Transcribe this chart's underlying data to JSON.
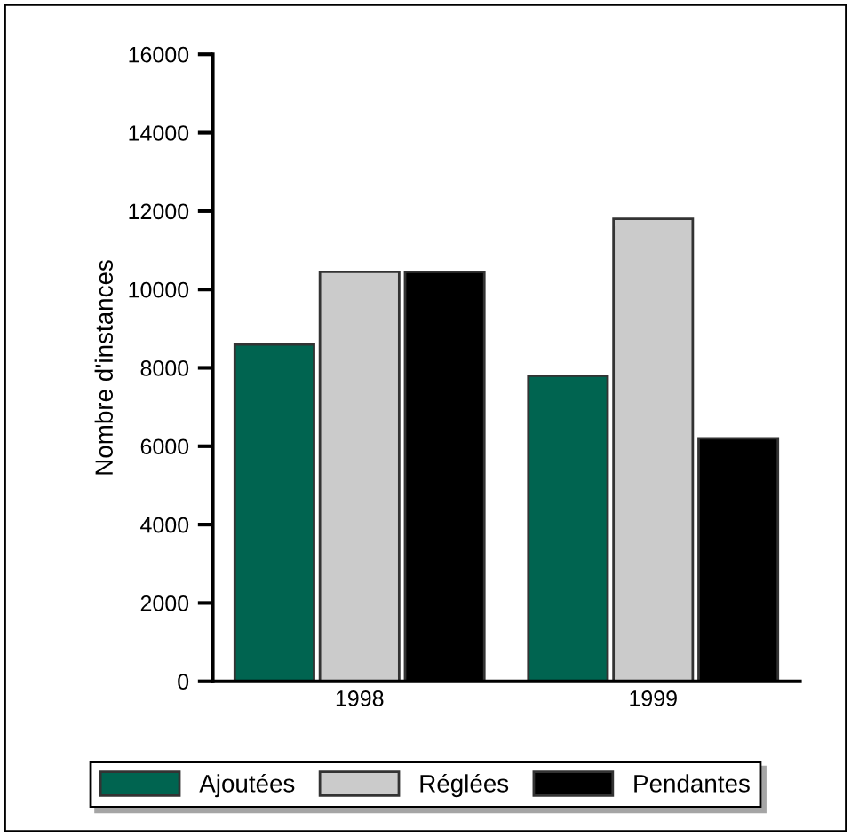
{
  "chart_data": {
    "type": "bar",
    "ylabel": "Nombre d'instances",
    "categories": [
      "1998",
      "1999"
    ],
    "series": [
      {
        "name": "Ajoutées",
        "color": "#006450",
        "values": [
          8600,
          7800
        ]
      },
      {
        "name": "Réglées",
        "color": "#cbcbcb",
        "values": [
          10450,
          11800
        ]
      },
      {
        "name": "Pendantes",
        "color": "#000000",
        "values": [
          10450,
          6200
        ]
      }
    ],
    "ylim": [
      0,
      16000
    ],
    "yticks": [
      0,
      2000,
      4000,
      6000,
      8000,
      10000,
      12000,
      14000,
      16000
    ],
    "grid": false,
    "legend": "bottom"
  }
}
